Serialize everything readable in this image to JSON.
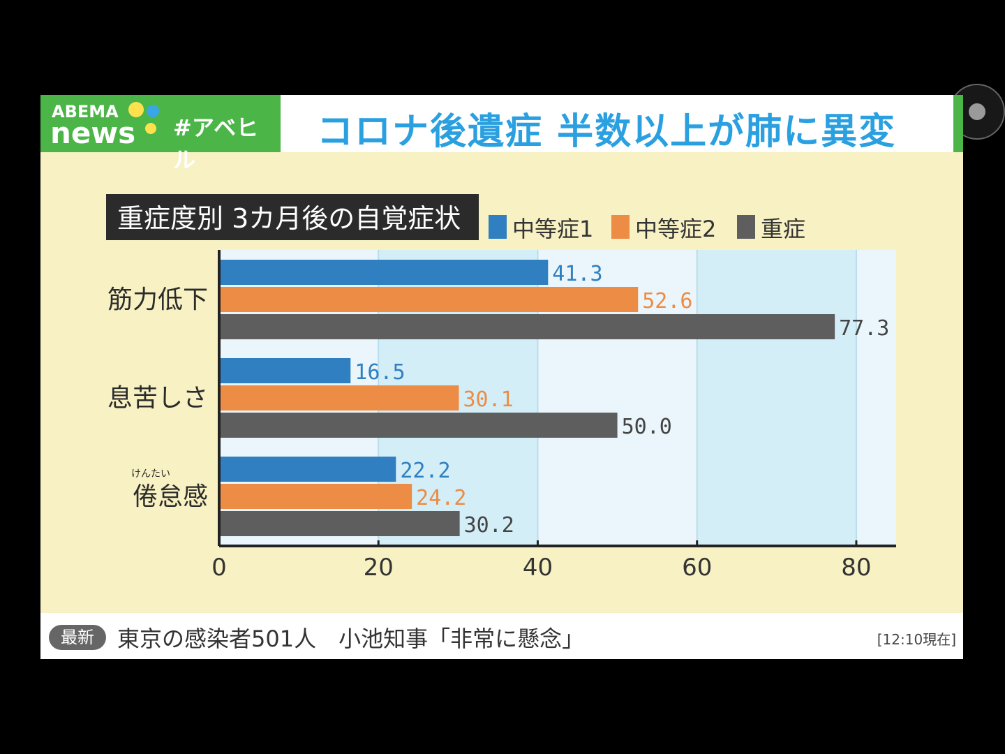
{
  "header": {
    "logo_top": "ABEMA",
    "logo_bottom": "news",
    "hashtag": "#アベヒル",
    "headline": "コロナ後遺症 半数以上が肺に異変"
  },
  "ticker": {
    "tag": "最新",
    "text": "東京の感染者501人　小池知事「非常に懸念」",
    "time": "[12:10現在]"
  },
  "chart_data": {
    "type": "bar",
    "orientation": "horizontal",
    "title": "重症度別 3カ月後の自覚症状",
    "categories": [
      "筋力低下",
      "息苦しさ",
      "倦怠感"
    ],
    "category_ruby": [
      "",
      "",
      "けんたい"
    ],
    "series": [
      {
        "name": "中等症1",
        "color": "#2f7fc1",
        "values": [
          41.3,
          16.5,
          22.2
        ],
        "label_color": "#2f7fc1"
      },
      {
        "name": "中等症2",
        "color": "#ec8c45",
        "values": [
          52.6,
          30.1,
          24.2
        ],
        "label_color": "#ec8c45"
      },
      {
        "name": "重症",
        "color": "#5e5e5e",
        "values": [
          77.3,
          50.0,
          30.2
        ],
        "label_color": "#444444"
      }
    ],
    "value_labels": [
      [
        "41.3",
        "16.5",
        "22.2"
      ],
      [
        "52.6",
        "30.1",
        "24.2"
      ],
      [
        "77.3",
        "50.0",
        "30.2"
      ]
    ],
    "xlim": [
      0,
      85
    ],
    "xticks": [
      "0",
      "20",
      "40",
      "60",
      "80"
    ],
    "legend": "top-right"
  }
}
